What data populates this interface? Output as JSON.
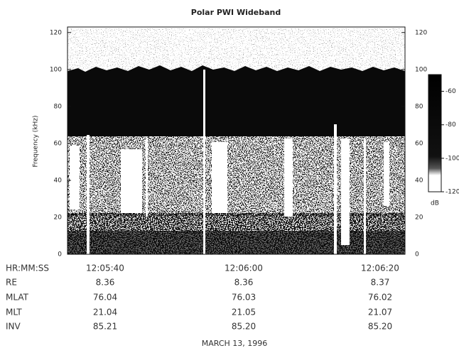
{
  "chart_data": {
    "type": "spectrogram",
    "title": "Polar PWI Wideband",
    "ylabel": "Frequency (kHz)",
    "ylim": [
      0,
      123
    ],
    "yticks": [
      0,
      20,
      40,
      60,
      80,
      100,
      120
    ],
    "colorbar": {
      "label": "dB",
      "lim": [
        -120,
        -50
      ],
      "ticks": [
        -60,
        -80,
        -100,
        -120
      ]
    },
    "ephemeris": {
      "rows": [
        {
          "label": "HR:MM:SS",
          "values": [
            "12:05:40",
            "12:06:00",
            "12:06:20"
          ]
        },
        {
          "label": "RE",
          "values": [
            "8.36",
            "8.36",
            "8.37"
          ]
        },
        {
          "label": "MLAT",
          "values": [
            "76.04",
            "76.03",
            "76.02"
          ]
        },
        {
          "label": "MLT",
          "values": [
            "21.04",
            "21.05",
            "21.07"
          ]
        },
        {
          "label": "INV",
          "values": [
            "85.21",
            "85.20",
            "85.20"
          ]
        }
      ]
    },
    "date": "MARCH 13, 1996"
  }
}
